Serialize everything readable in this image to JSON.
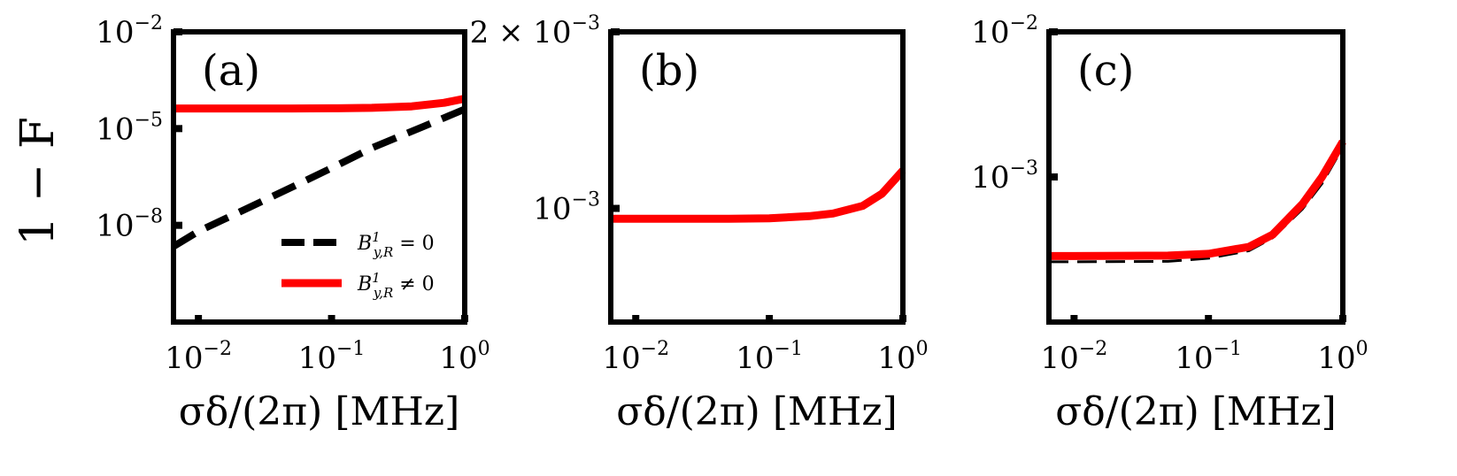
{
  "figure": {
    "ylabel": "1 − F",
    "legend": [
      {
        "series": "black dashed",
        "label_main": "B",
        "label_sup": "1",
        "label_sub": "y,R",
        "label_rel": " = 0"
      },
      {
        "series": "red solid",
        "label_main": "B",
        "label_sup": "1",
        "label_sub": "y,R",
        "label_rel": " ≠ 0"
      }
    ]
  },
  "colors": {
    "black_series": "#000000",
    "red_series": "#ff0000",
    "frame": "#000000"
  },
  "chart_data": [
    {
      "type": "line",
      "panel_label": "(a)",
      "title": "",
      "xlabel": "σδ/(2π) [MHz]",
      "ylabel": "1 − F",
      "xscale": "log",
      "yscale": "log",
      "xlim": [
        0.0065,
        1.0
      ],
      "ylim": [
        1e-11,
        0.01
      ],
      "xticks": [
        {
          "value": 0.01,
          "base": "10",
          "exp": "−2"
        },
        {
          "value": 0.1,
          "base": "10",
          "exp": "−1"
        },
        {
          "value": 1,
          "base": "10",
          "exp": "0"
        }
      ],
      "yticks": [
        {
          "value": 0.01,
          "base": "10",
          "exp": "−2"
        },
        {
          "value": 1e-05,
          "base": "10",
          "exp": "−5"
        },
        {
          "value": 1e-08,
          "base": "10",
          "exp": "−8"
        }
      ],
      "legend_position": "lower-right",
      "series": [
        {
          "name": "B^1_{y,R} = 0",
          "style": "dashed",
          "color": "#000000",
          "x": [
            0.0065,
            0.01,
            0.02,
            0.05,
            0.1,
            0.2,
            0.5,
            1.0
          ],
          "y": [
            2.2e-09,
            6.5e-09,
            2.5e-08,
            1.5e-07,
            6e-07,
            2.5e-06,
            1.2e-05,
            4e-05
          ]
        },
        {
          "name": "B^1_{y,R} ≠ 0",
          "style": "solid",
          "color": "#ff0000",
          "x": [
            0.0065,
            0.01,
            0.05,
            0.1,
            0.2,
            0.4,
            0.7,
            1.0
          ],
          "y": [
            4.2e-05,
            4.2e-05,
            4.2e-05,
            4.25e-05,
            4.4e-05,
            4.9e-05,
            6.3e-05,
            8.5e-05
          ]
        }
      ]
    },
    {
      "type": "line",
      "panel_label": "(b)",
      "title": "",
      "xlabel": "σδ/(2π) [MHz]",
      "ylabel": "",
      "xscale": "log",
      "yscale": "log",
      "xlim": [
        0.0065,
        1.0
      ],
      "ylim": [
        0.00064,
        0.002
      ],
      "xticks": [
        {
          "value": 0.01,
          "base": "10",
          "exp": "−2"
        },
        {
          "value": 0.1,
          "base": "10",
          "exp": "−1"
        },
        {
          "value": 1,
          "base": "10",
          "exp": "0"
        }
      ],
      "yticks": [
        {
          "value": 0.002,
          "base": "2 × 10",
          "exp": "−3"
        },
        {
          "value": 0.001,
          "base": "10",
          "exp": "−3"
        }
      ],
      "series": [
        {
          "name": "B^1_{y,R} = 0",
          "style": "dashed",
          "color": "#000000",
          "x": [
            0.0065,
            0.01,
            0.05,
            0.1,
            0.2,
            0.3,
            0.5,
            0.7,
            1.0
          ],
          "y": [
            0.00096,
            0.00096,
            0.00096,
            0.000962,
            0.00097,
            0.00098,
            0.00102,
            0.00107,
            0.00116
          ]
        },
        {
          "name": "B^1_{y,R} ≠ 0",
          "style": "solid",
          "color": "#ff0000",
          "x": [
            0.0065,
            0.01,
            0.05,
            0.1,
            0.2,
            0.3,
            0.5,
            0.7,
            1.0
          ],
          "y": [
            0.00096,
            0.00096,
            0.00096,
            0.000962,
            0.00097,
            0.00098,
            0.00101,
            0.00106,
            0.00116
          ]
        }
      ]
    },
    {
      "type": "line",
      "panel_label": "(c)",
      "title": "",
      "xlabel": "σδ/(2π) [MHz]",
      "ylabel": "",
      "xscale": "log",
      "yscale": "log",
      "xlim": [
        0.0065,
        1.0
      ],
      "ylim": [
        0.0001,
        0.01
      ],
      "xticks": [
        {
          "value": 0.01,
          "base": "10",
          "exp": "−2"
        },
        {
          "value": 0.1,
          "base": "10",
          "exp": "−1"
        },
        {
          "value": 1,
          "base": "10",
          "exp": "0"
        }
      ],
      "yticks": [
        {
          "value": 0.01,
          "base": "10",
          "exp": "−2"
        },
        {
          "value": 0.001,
          "base": "10",
          "exp": "−3"
        }
      ],
      "series": [
        {
          "name": "B^1_{y,R} = 0",
          "style": "dashed",
          "color": "#000000",
          "x": [
            0.0065,
            0.01,
            0.05,
            0.1,
            0.2,
            0.3,
            0.5,
            0.7,
            1.0
          ],
          "y": [
            0.00026,
            0.00026,
            0.000262,
            0.000275,
            0.00031,
            0.00038,
            0.0006,
            0.0009,
            0.0016
          ]
        },
        {
          "name": "B^1_{y,R} ≠ 0",
          "style": "solid",
          "color": "#ff0000",
          "x": [
            0.0065,
            0.01,
            0.05,
            0.1,
            0.2,
            0.3,
            0.5,
            0.7,
            1.0
          ],
          "y": [
            0.000285,
            0.000285,
            0.000287,
            0.000295,
            0.00033,
            0.0004,
            0.00065,
            0.001,
            0.00175
          ]
        }
      ]
    }
  ]
}
